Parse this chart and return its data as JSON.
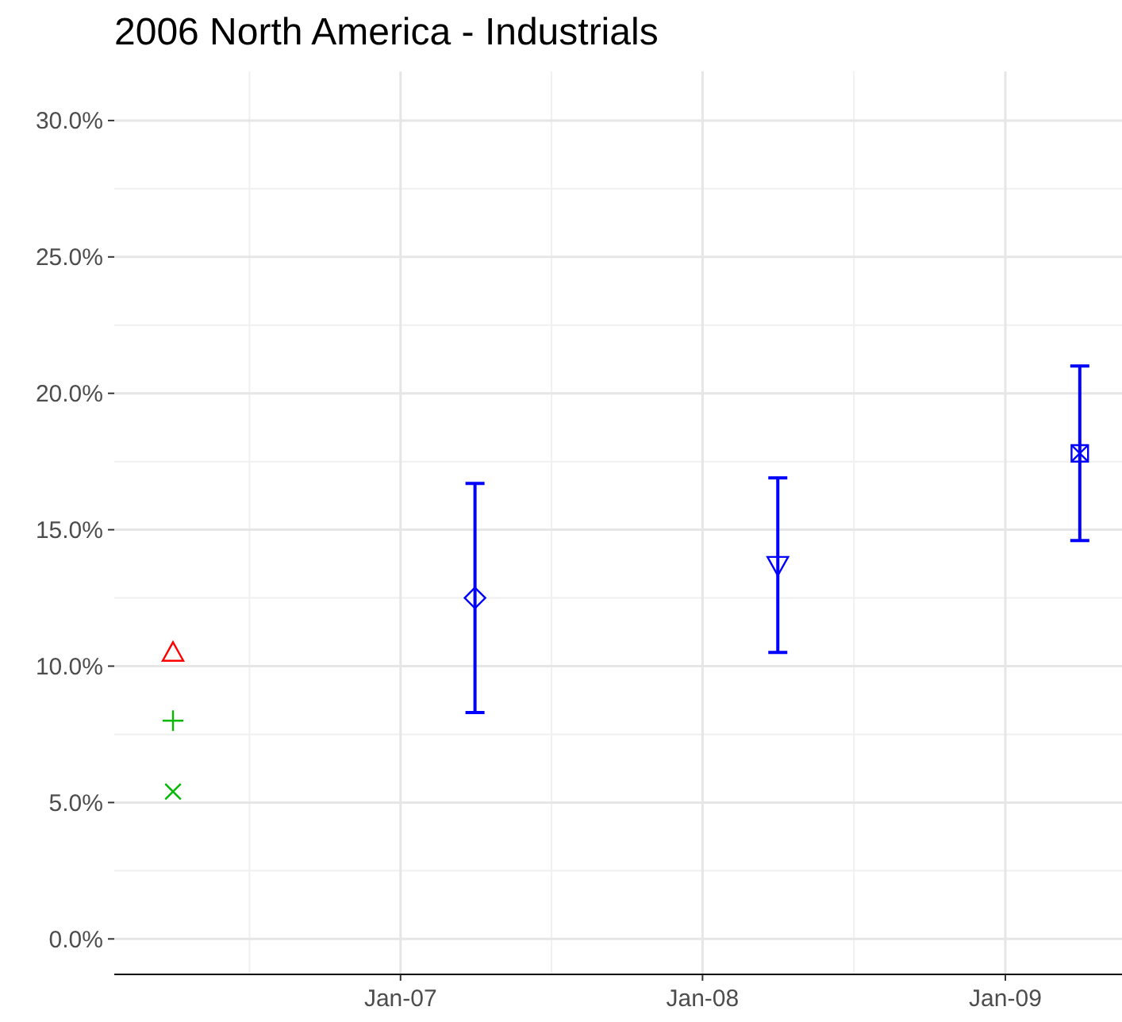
{
  "chart_data": {
    "type": "scatter",
    "title": "2006 North America - Industrials",
    "xlim": [
      "2006-01-20",
      "2009-05-22"
    ],
    "xticks": [
      {
        "value": "2007-01-01",
        "label": "Jan-07"
      },
      {
        "value": "2008-01-01",
        "label": "Jan-08"
      },
      {
        "value": "2009-01-01",
        "label": "Jan-09"
      }
    ],
    "ylim": [
      -1.3,
      31.8
    ],
    "yticks": [
      {
        "value": 0,
        "label": "0.0%"
      },
      {
        "value": 5,
        "label": "5.0%"
      },
      {
        "value": 10,
        "label": "10.0%"
      },
      {
        "value": 15,
        "label": "15.0%"
      },
      {
        "value": 20,
        "label": "20.0%"
      },
      {
        "value": 25,
        "label": "25.0%"
      },
      {
        "value": 30,
        "label": "30.0%"
      }
    ],
    "grid": true,
    "series": [
      {
        "color": "#ff0000",
        "marker": "triangle",
        "x": [
          "2006-04-01"
        ],
        "values": [
          10.5
        ]
      },
      {
        "color": "#00bb00",
        "marker": "plus",
        "x": [
          "2006-04-01"
        ],
        "values": [
          8.0
        ]
      },
      {
        "color": "#00bb00",
        "marker": "cross",
        "x": [
          "2006-04-01"
        ],
        "values": [
          5.4
        ]
      },
      {
        "color": "#0000ff",
        "marker": "diamond",
        "x": [
          "2007-04-01"
        ],
        "values": [
          12.5
        ],
        "errors": [
          [
            8.3,
            16.7
          ]
        ]
      },
      {
        "color": "#0000ff",
        "marker": "triangle-down",
        "x": [
          "2008-04-01"
        ],
        "values": [
          13.7
        ],
        "errors": [
          [
            10.5,
            16.9
          ]
        ]
      },
      {
        "color": "#0000ff",
        "marker": "square",
        "x": [
          "2009-04-01"
        ],
        "values": [
          17.8
        ],
        "errors": [
          [
            14.6,
            21.0
          ]
        ]
      }
    ]
  }
}
